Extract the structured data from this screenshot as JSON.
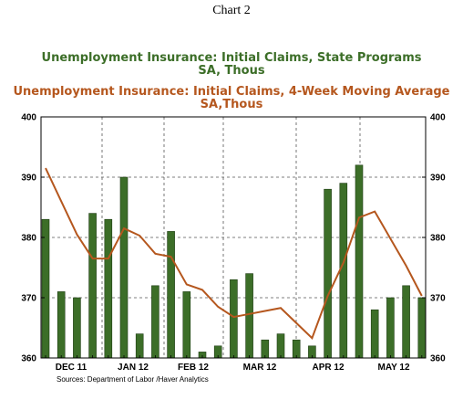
{
  "chart_number": "Chart 2",
  "source": "Sources:  Department of Labor /Haver Analytics",
  "chart_data": {
    "type": "bar+line",
    "titles": [
      {
        "line1": "Unemployment Insurance: Initial Claims, State Programs",
        "line2": "SA, Thous",
        "color": "#3c6e28"
      },
      {
        "line1": "Unemployment Insurance: Initial Claims, 4-Week Moving Average",
        "line2": "SA,Thous",
        "color": "#b5571e"
      }
    ],
    "ylim": [
      360,
      400
    ],
    "yticks": [
      360,
      370,
      380,
      390,
      400
    ],
    "ytick_labels": [
      "360",
      "370",
      "380",
      "390",
      "400"
    ],
    "month_labels": [
      "DEC 11",
      "JAN 12",
      "FEB 12",
      "MAR 12",
      "APR 12",
      "MAY 12"
    ],
    "grid": true,
    "series": [
      {
        "type": "bar",
        "color": "#3c6e28",
        "values": [
          383,
          371,
          370,
          384,
          383,
          390,
          364,
          372,
          381,
          371,
          361,
          362,
          373,
          374,
          363,
          364,
          363,
          362,
          388,
          389,
          392,
          368,
          370,
          372,
          370
        ]
      },
      {
        "type": "line",
        "color": "#b5571e",
        "values": [
          391.5,
          386,
          380.5,
          376.5,
          376.5,
          381.5,
          380.3,
          377.3,
          376.8,
          372.2,
          371.3,
          368.5,
          366.8,
          367.3,
          367.8,
          368.3,
          365.8,
          363.3,
          370.3,
          375.8,
          383.3,
          384.3,
          379.8,
          375.3,
          370.3
        ]
      }
    ]
  }
}
